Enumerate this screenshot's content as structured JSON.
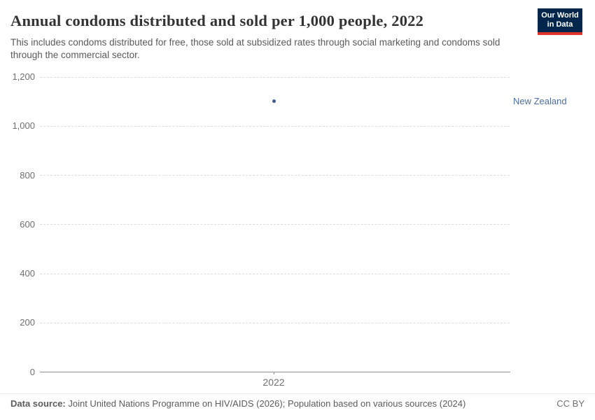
{
  "header": {
    "title": "Annual condoms distributed and sold per 1,000 people, 2022",
    "subtitle": "This includes condoms distributed for free, those sold at subsidized rates through social marketing and condoms sold through the commercial sector.",
    "logo": {
      "line1": "Our World",
      "line2": "in Data"
    }
  },
  "chart_data": {
    "type": "scatter",
    "title": "Annual condoms distributed and sold per 1,000 people, 2022",
    "x": [
      2022
    ],
    "xtick_labels": [
      "2022"
    ],
    "series": [
      {
        "name": "New Zealand",
        "x": 2022,
        "y": 1100
      }
    ],
    "yticks": [
      0,
      200,
      400,
      600,
      800,
      1000,
      1200
    ],
    "ytick_labels": [
      "0",
      "200",
      "400",
      "600",
      "800",
      "1,000",
      "1,200"
    ],
    "ylim": [
      0,
      1200
    ],
    "xlabel": "",
    "ylabel": "",
    "grid": "horizontal-dashed",
    "legend_position": "entity label right of plot"
  },
  "footer": {
    "data_source_label": "Data source:",
    "data_source_text": " Joint United Nations Programme on HIV/AIDS (2026); Population based on various sources (2024)",
    "license": "CC BY"
  },
  "colors": {
    "point": "#3d5c8f",
    "entity_label": "#4a6da4",
    "logo_navy": "#00264c",
    "logo_red": "#e0352b",
    "grid": "#dcdcdc",
    "axis": "#8f8f8f",
    "title_text": "#333333",
    "subtitle_text": "#595959",
    "tick_text": "#6e6e6e"
  }
}
